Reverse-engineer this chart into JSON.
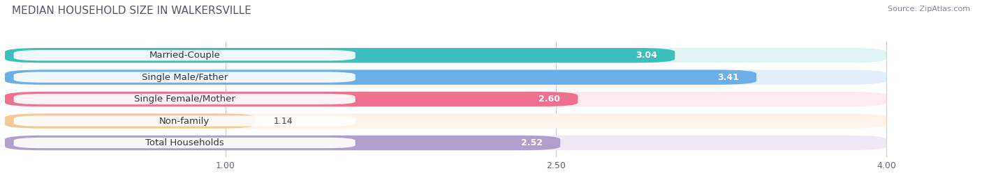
{
  "title": "MEDIAN HOUSEHOLD SIZE IN WALKERSVILLE",
  "source": "Source: ZipAtlas.com",
  "categories": [
    "Married-Couple",
    "Single Male/Father",
    "Single Female/Mother",
    "Non-family",
    "Total Households"
  ],
  "values": [
    3.04,
    3.41,
    2.6,
    1.14,
    2.52
  ],
  "bar_colors": [
    "#3DBFBF",
    "#6BAEE8",
    "#F07090",
    "#F5C896",
    "#B09FCC"
  ],
  "bar_bg_color": "#E8E8EE",
  "xlim": [
    0,
    4.3
  ],
  "xmin": 0,
  "xmax": 4.0,
  "xticks": [
    1.0,
    2.5,
    4.0
  ],
  "label_fontsize": 9.5,
  "value_fontsize": 9,
  "title_fontsize": 11,
  "title_color": "#555566",
  "background_color": "#ffffff",
  "bar_bg_light": [
    "#E0F4F4",
    "#E4EEF8",
    "#FCEAEE",
    "#FDF3E8",
    "#EEE8F4"
  ]
}
